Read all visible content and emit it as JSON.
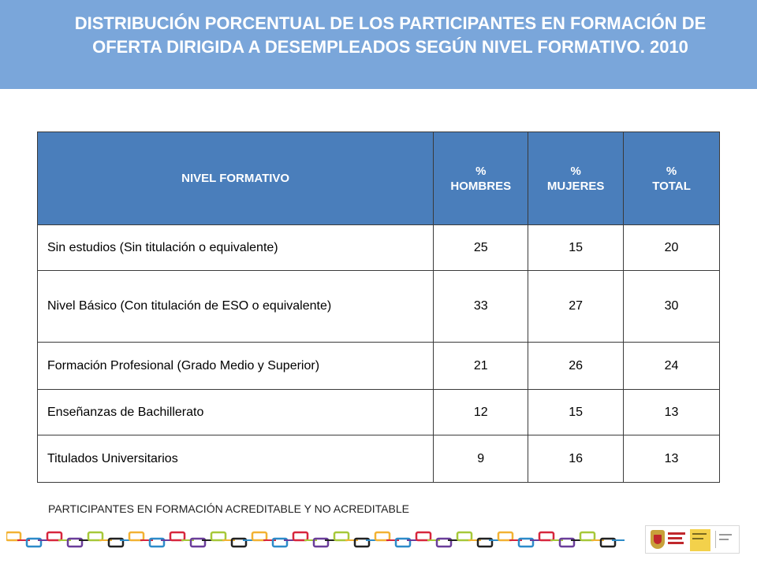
{
  "title": {
    "line1": "DISTRIBUCIÓN PORCENTUAL DE LOS PARTICIPANTES EN FORMACIÓN DE",
    "line2": "OFERTA DIRIGIDA A DESEMPLEADOS SEGÚN NIVEL FORMATIVO. 2010"
  },
  "table": {
    "headers": {
      "nivel": "NIVEL FORMATIVO",
      "hombres": {
        "symbol": "%",
        "label": "HOMBRES"
      },
      "mujeres": {
        "symbol": "%",
        "label": "MUJERES"
      },
      "total": {
        "symbol": "%",
        "label": "TOTAL"
      }
    },
    "rows": [
      {
        "nivel": "Sin estudios (Sin titulación o equivalente)",
        "hombres": "25",
        "mujeres": "15",
        "total": "20"
      },
      {
        "nivel": "Nivel Básico (Con titulación de ESO o equivalente)",
        "hombres": "33",
        "mujeres": "27",
        "total": "30"
      },
      {
        "nivel": "Formación Profesional (Grado Medio y Superior)",
        "hombres": "21",
        "mujeres": "26",
        "total": "24"
      },
      {
        "nivel": "Enseñanzas de Bachillerato",
        "hombres": "12",
        "mujeres": "15",
        "total": "13"
      },
      {
        "nivel": "Titulados Universitarios",
        "hombres": "9",
        "mujeres": "16",
        "total": "13"
      }
    ]
  },
  "footnote": "PARTICIPANTES EN FORMACIÓN ACREDITABLE Y NO ACREDITABLE",
  "colors": {
    "header_band": "#7aa6da",
    "table_header": "#4a7ebb",
    "chain": [
      "#f2b233",
      "#2c8bc9",
      "#d7263d",
      "#6a3d9a",
      "#a6c839",
      "#222222"
    ]
  }
}
